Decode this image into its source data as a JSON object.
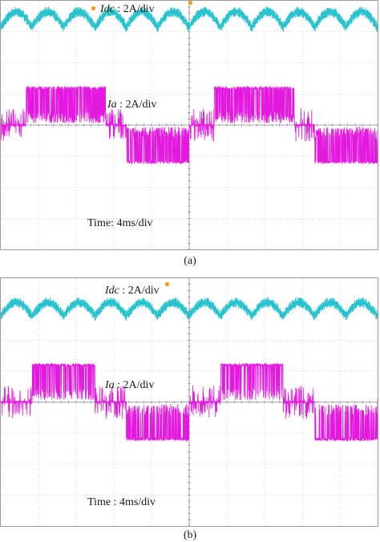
{
  "colors": {
    "idc": "#29c3cf",
    "ia": "#e419e0",
    "grid": "#b0b0b0",
    "marker": "#f0a020"
  },
  "panels": [
    {
      "caption": "(a)",
      "idc_label": {
        "var": "Idc",
        "scale": " : 2A/div"
      },
      "ia_label": {
        "var": "Ia",
        "scale": " : 2A/div"
      },
      "time_label": "Time: 4ms/div",
      "chart_data": {
        "type": "line",
        "x_unit": "ms",
        "x_range": [
          0,
          40
        ],
        "y_unit": "div",
        "y_range": [
          -4,
          4
        ],
        "grid": true,
        "series": [
          {
            "key": "idc",
            "waveform": "ripple",
            "level_div": 3.4,
            "ripple_div": 0.25,
            "ripple_period_ms": 3.33
          },
          {
            "key": "ia",
            "waveform": "stepped-square",
            "period_ms": 20,
            "high_div": 1.2,
            "zero_div": 0.0,
            "low_div": -1.2,
            "step_ms": 3.33
          }
        ]
      }
    },
    {
      "caption": "(b)",
      "idc_label": {
        "var": "Idc",
        "scale": " : 2A/div"
      },
      "ia_label": {
        "var": "Ia",
        "scale": " : 2A/div"
      },
      "time_label": "Time : 4ms/div",
      "chart_data": {
        "type": "line",
        "x_unit": "ms",
        "x_range": [
          0,
          40
        ],
        "y_unit": "div",
        "y_range": [
          -4,
          4
        ],
        "grid": true,
        "series": [
          {
            "key": "idc",
            "waveform": "ripple",
            "level_div": 3.0,
            "ripple_div": 0.22,
            "ripple_period_ms": 3.33
          },
          {
            "key": "ia",
            "waveform": "six-step",
            "period_ms": 20,
            "high_div": 1.2,
            "mid_div": 0.0,
            "low_div": -1.2,
            "step_ms": 3.33
          }
        ]
      }
    }
  ]
}
